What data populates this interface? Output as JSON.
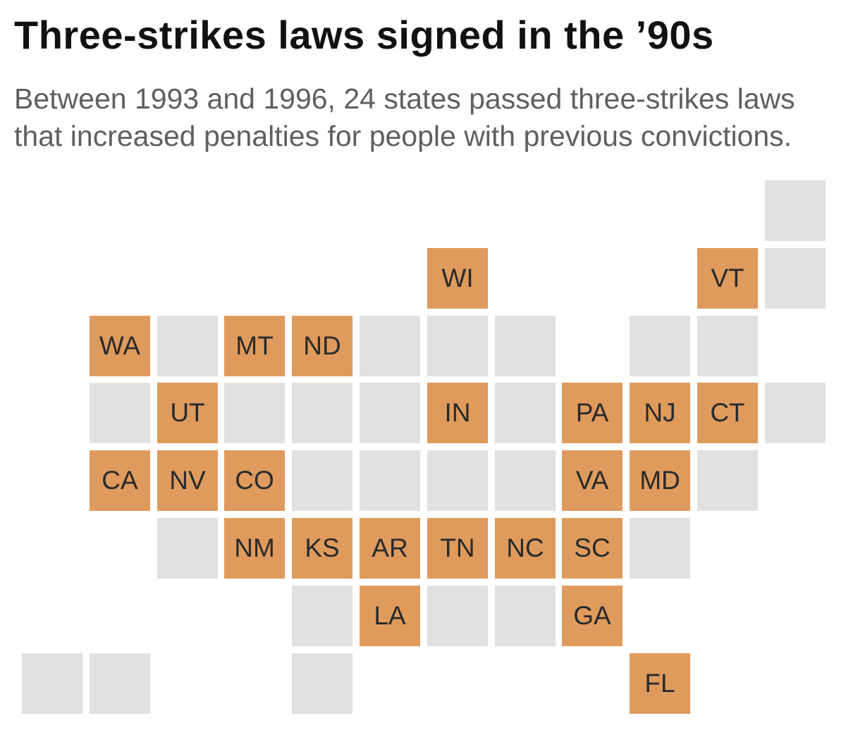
{
  "title": "Three-strikes laws signed in the ’90s",
  "subtitle": "Between 1993 and 1996, 24 states passed three-strikes laws that increased penalties for people with previous convictions.",
  "colors": {
    "passed": "#df9b5d",
    "not_passed": "#e1e1e3"
  },
  "map": {
    "type": "tile-grid",
    "tiles": [
      {
        "label": "",
        "passed": false,
        "row": 0,
        "col": 11
      },
      {
        "label": "WI",
        "passed": true,
        "row": 1,
        "col": 6
      },
      {
        "label": "VT",
        "passed": true,
        "row": 1,
        "col": 10
      },
      {
        "label": "",
        "passed": false,
        "row": 1,
        "col": 11
      },
      {
        "label": "WA",
        "passed": true,
        "row": 2,
        "col": 1
      },
      {
        "label": "",
        "passed": false,
        "row": 2,
        "col": 2
      },
      {
        "label": "MT",
        "passed": true,
        "row": 2,
        "col": 3
      },
      {
        "label": "ND",
        "passed": true,
        "row": 2,
        "col": 4
      },
      {
        "label": "",
        "passed": false,
        "row": 2,
        "col": 5
      },
      {
        "label": "",
        "passed": false,
        "row": 2,
        "col": 6
      },
      {
        "label": "",
        "passed": false,
        "row": 2,
        "col": 7
      },
      {
        "label": "",
        "passed": false,
        "row": 2,
        "col": 9
      },
      {
        "label": "",
        "passed": false,
        "row": 2,
        "col": 10
      },
      {
        "label": "",
        "passed": false,
        "row": 3,
        "col": 1
      },
      {
        "label": "UT",
        "passed": true,
        "row": 3,
        "col": 2
      },
      {
        "label": "",
        "passed": false,
        "row": 3,
        "col": 3
      },
      {
        "label": "",
        "passed": false,
        "row": 3,
        "col": 4
      },
      {
        "label": "",
        "passed": false,
        "row": 3,
        "col": 5
      },
      {
        "label": "IN",
        "passed": true,
        "row": 3,
        "col": 6
      },
      {
        "label": "",
        "passed": false,
        "row": 3,
        "col": 7
      },
      {
        "label": "PA",
        "passed": true,
        "row": 3,
        "col": 8
      },
      {
        "label": "NJ",
        "passed": true,
        "row": 3,
        "col": 9
      },
      {
        "label": "CT",
        "passed": true,
        "row": 3,
        "col": 10
      },
      {
        "label": "",
        "passed": false,
        "row": 3,
        "col": 11
      },
      {
        "label": "CA",
        "passed": true,
        "row": 4,
        "col": 1
      },
      {
        "label": "NV",
        "passed": true,
        "row": 4,
        "col": 2
      },
      {
        "label": "CO",
        "passed": true,
        "row": 4,
        "col": 3
      },
      {
        "label": "",
        "passed": false,
        "row": 4,
        "col": 4
      },
      {
        "label": "",
        "passed": false,
        "row": 4,
        "col": 5
      },
      {
        "label": "",
        "passed": false,
        "row": 4,
        "col": 6
      },
      {
        "label": "",
        "passed": false,
        "row": 4,
        "col": 7
      },
      {
        "label": "VA",
        "passed": true,
        "row": 4,
        "col": 8
      },
      {
        "label": "MD",
        "passed": true,
        "row": 4,
        "col": 9
      },
      {
        "label": "",
        "passed": false,
        "row": 4,
        "col": 10
      },
      {
        "label": "",
        "passed": false,
        "row": 5,
        "col": 2
      },
      {
        "label": "NM",
        "passed": true,
        "row": 5,
        "col": 3
      },
      {
        "label": "KS",
        "passed": true,
        "row": 5,
        "col": 4
      },
      {
        "label": "AR",
        "passed": true,
        "row": 5,
        "col": 5
      },
      {
        "label": "TN",
        "passed": true,
        "row": 5,
        "col": 6
      },
      {
        "label": "NC",
        "passed": true,
        "row": 5,
        "col": 7
      },
      {
        "label": "SC",
        "passed": true,
        "row": 5,
        "col": 8
      },
      {
        "label": "",
        "passed": false,
        "row": 5,
        "col": 9
      },
      {
        "label": "",
        "passed": false,
        "row": 6,
        "col": 4
      },
      {
        "label": "LA",
        "passed": true,
        "row": 6,
        "col": 5
      },
      {
        "label": "",
        "passed": false,
        "row": 6,
        "col": 6
      },
      {
        "label": "",
        "passed": false,
        "row": 6,
        "col": 7
      },
      {
        "label": "GA",
        "passed": true,
        "row": 6,
        "col": 8
      },
      {
        "label": "",
        "passed": false,
        "row": 7,
        "col": 0
      },
      {
        "label": "",
        "passed": false,
        "row": 7,
        "col": 1
      },
      {
        "label": "",
        "passed": false,
        "row": 7,
        "col": 4
      },
      {
        "label": "FL",
        "passed": true,
        "row": 7,
        "col": 9
      }
    ]
  }
}
